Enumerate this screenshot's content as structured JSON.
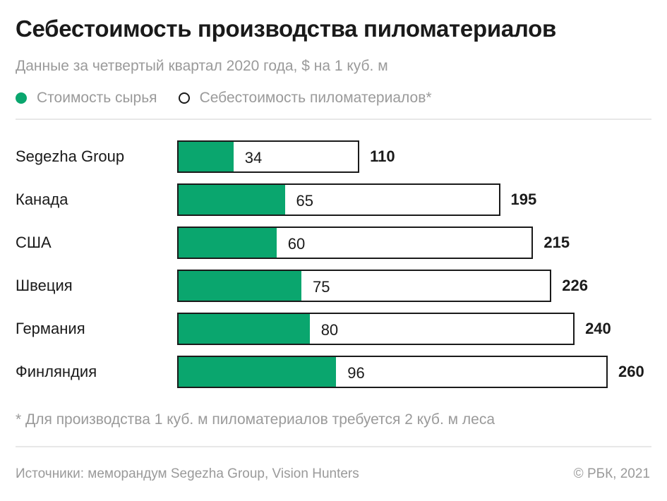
{
  "colors": {
    "raw": "#0aa66e",
    "total": "#ffffff",
    "outline": "#1a1a1a"
  },
  "chart_data": {
    "type": "bar",
    "orientation": "horizontal",
    "title": "Себестоимость производства пиломатериалов",
    "subtitle": "Данные за четвертый квартал 2020 года, $ на 1 куб. м",
    "legend": [
      {
        "name": "Стоимость сырья",
        "color": "#0aa66e",
        "marker": "filled-circle"
      },
      {
        "name": "Себестоимость пиломатериалов*",
        "color": "#ffffff",
        "marker": "outlined-circle"
      }
    ],
    "legend_placement": "top-left",
    "categories": [
      "Segezha Group",
      "Канада",
      "США",
      "Швеция",
      "Германия",
      "Финляндия"
    ],
    "series": [
      {
        "name": "Стоимость сырья",
        "values": [
          34,
          65,
          60,
          75,
          80,
          96
        ]
      },
      {
        "name": "Себестоимость пиломатериалов*",
        "values": [
          110,
          195,
          215,
          226,
          240,
          260
        ]
      }
    ],
    "xlim": [
      0,
      260
    ],
    "grid": false
  },
  "footnote": "* Для производства 1 куб. м пиломатериалов требуется 2 куб. м леса",
  "source": "Источники: меморандум Segezha Group, Vision Hunters",
  "copyright": "© РБК, 2021"
}
